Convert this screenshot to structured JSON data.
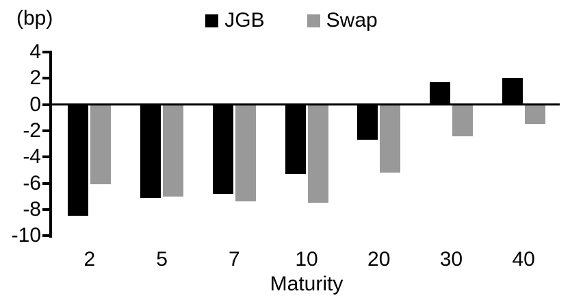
{
  "chart_data": {
    "type": "bar",
    "title": "",
    "unit_label": "(bp)",
    "xlabel": "Maturity",
    "ylabel": "",
    "categories": [
      "2",
      "5",
      "7",
      "10",
      "20",
      "30",
      "40"
    ],
    "series": [
      {
        "name": "JGB",
        "color": "#000000",
        "values": [
          -8.5,
          -7.1,
          -6.8,
          -5.3,
          -2.7,
          1.7,
          2.0
        ]
      },
      {
        "name": "Swap",
        "color": "#999999",
        "values": [
          -6.1,
          -7.0,
          -7.4,
          -7.5,
          -5.2,
          -2.4,
          -1.5
        ]
      }
    ],
    "yticks": [
      4,
      2,
      0,
      -2,
      -4,
      -6,
      -8,
      -10
    ],
    "ylim": [
      -10,
      4
    ],
    "legend_position": "top-center",
    "grid": false,
    "baseline": 0
  }
}
